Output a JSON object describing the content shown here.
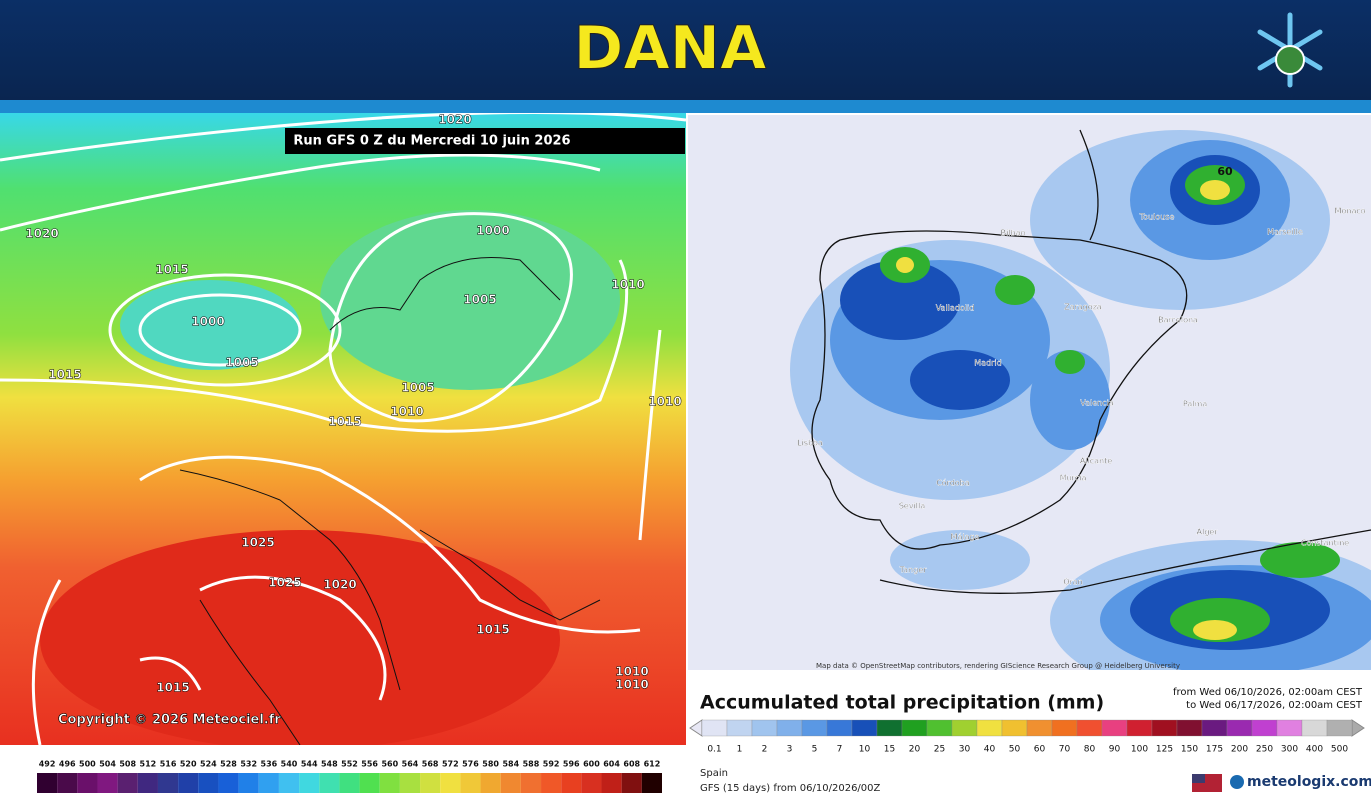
{
  "header": {
    "title": "DANA"
  },
  "left_map": {
    "run_label": "Run GFS 0 Z du Mercredi 10 juin 2026",
    "copyright": "Copyright © 2026 Meteociel.fr",
    "isobar_labels": [
      "1020",
      "1020",
      "1015",
      "1000",
      "1005",
      "1015",
      "1000",
      "1005",
      "1010",
      "1005",
      "1010",
      "1015",
      "1010",
      "1025",
      "1025",
      "1020",
      "1015",
      "1015",
      "1010",
      "1010"
    ],
    "scale": [
      "492",
      "496",
      "500",
      "504",
      "508",
      "512",
      "516",
      "520",
      "524",
      "528",
      "532",
      "536",
      "540",
      "544",
      "548",
      "552",
      "556",
      "560",
      "564",
      "568",
      "572",
      "576",
      "580",
      "584",
      "588",
      "592",
      "596",
      "600",
      "604",
      "608",
      "612"
    ]
  },
  "right_map": {
    "cities": [
      "Bilbao",
      "Valladolid",
      "Zaragoza",
      "Barcelona",
      "Madrid",
      "Lisboa",
      "Valencia",
      "Palma",
      "Córdoba",
      "Sevilla",
      "Alicante",
      "Murcia",
      "Málaga",
      "Oran",
      "Alger",
      "Constantine",
      "Toulouse",
      "Marseille",
      "Monaco",
      "Tanger"
    ],
    "peak_label": "60",
    "map_credit": "Map data © OpenStreetMap contributors, rendering GIScience Research Group @ Heidelberg University",
    "legend_title": "Accumulated total precipitation (mm)",
    "from": "from Wed 06/10/2026, 02:00am CEST",
    "to": "to Wed 06/17/2026, 02:00am CEST",
    "scale": [
      "0.1",
      "1",
      "2",
      "3",
      "5",
      "7",
      "10",
      "15",
      "20",
      "25",
      "30",
      "40",
      "50",
      "60",
      "70",
      "80",
      "90",
      "100",
      "125",
      "150",
      "175",
      "200",
      "250",
      "300",
      "400",
      "500"
    ],
    "region": "Spain",
    "model": "GFS (15 days) from 06/10/2026/00Z",
    "brand": "meteologix.com"
  }
}
